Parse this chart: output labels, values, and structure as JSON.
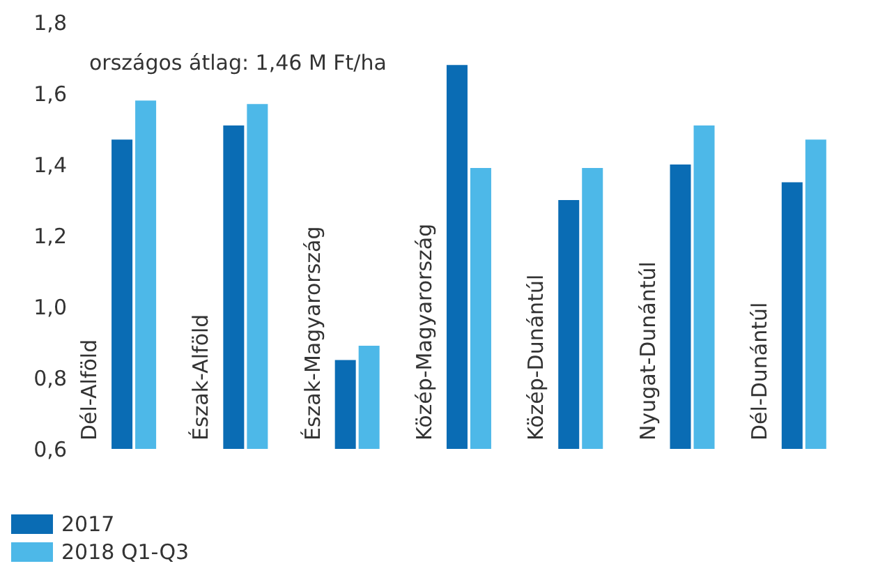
{
  "chart_data": {
    "type": "bar",
    "categories": [
      "Dél-Alföld",
      "Észak-Alföld",
      "Észak-Magyarország",
      "Közép-Magyarország",
      "Közép-Dunántúl",
      "Nyugat-Dunántúl",
      "Dél-Dunántúl"
    ],
    "series": [
      {
        "name": "2017",
        "color": "#0a6cb4",
        "values": [
          1.47,
          1.51,
          0.85,
          1.68,
          1.3,
          1.4,
          1.35
        ]
      },
      {
        "name": "2018 Q1-Q3",
        "color": "#4db8e8",
        "values": [
          1.58,
          1.57,
          0.89,
          1.39,
          1.39,
          1.51,
          1.47
        ]
      }
    ],
    "ylim": [
      0.6,
      1.8
    ],
    "yticks": [
      {
        "value": 0.6,
        "label": "0,6"
      },
      {
        "value": 0.8,
        "label": "0,8"
      },
      {
        "value": 1,
        "label": "1,0"
      },
      {
        "value": 1.2,
        "label": "1,2"
      },
      {
        "value": 1.4,
        "label": "1,4"
      },
      {
        "value": 1.6,
        "label": "1,6"
      },
      {
        "value": 1.8,
        "label": "1,8"
      }
    ],
    "annotations": [
      "országos átlag: 1,46 M Ft/ha"
    ],
    "grid": false,
    "legend": "bottom left"
  }
}
